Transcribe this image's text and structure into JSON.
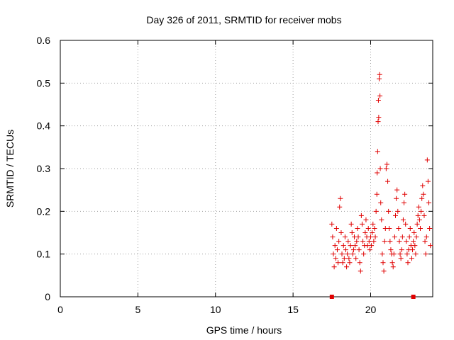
{
  "chart_data": {
    "type": "scatter",
    "title": "Day 326 of 2011, SRMTID for receiver mobs",
    "xlabel": "GPS time / hours",
    "ylabel": "SRMTID / TECUs",
    "xlim": [
      0,
      24
    ],
    "ylim": [
      0,
      0.6
    ],
    "x_ticks": [
      0,
      5,
      10,
      15,
      20
    ],
    "y_ticks": [
      0,
      0.1,
      0.2,
      0.3,
      0.4,
      0.5,
      0.6
    ],
    "x_tick_labels": [
      "0",
      "5",
      "10",
      "15",
      "20"
    ],
    "y_tick_labels": [
      "0",
      "0.1",
      "0.2",
      "0.3",
      "0.4",
      "0.5",
      "0.6"
    ],
    "grid": true,
    "marker": "plus",
    "color": "#e00000",
    "series": [
      {
        "name": "SRMTID",
        "points": [
          [
            17.5,
            0.17
          ],
          [
            17.55,
            0.14
          ],
          [
            17.6,
            0.1
          ],
          [
            17.65,
            0.07
          ],
          [
            17.7,
            0.12
          ],
          [
            17.75,
            0.09
          ],
          [
            17.8,
            0.16
          ],
          [
            17.85,
            0.11
          ],
          [
            17.9,
            0.08
          ],
          [
            17.95,
            0.13
          ],
          [
            18.0,
            0.21
          ],
          [
            18.05,
            0.23
          ],
          [
            18.1,
            0.15
          ],
          [
            18.15,
            0.1
          ],
          [
            18.2,
            0.08
          ],
          [
            18.25,
            0.12
          ],
          [
            18.3,
            0.09
          ],
          [
            18.35,
            0.14
          ],
          [
            18.4,
            0.11
          ],
          [
            18.45,
            0.07
          ],
          [
            18.5,
            0.1
          ],
          [
            18.55,
            0.13
          ],
          [
            18.6,
            0.09
          ],
          [
            18.65,
            0.08
          ],
          [
            18.7,
            0.12
          ],
          [
            18.75,
            0.17
          ],
          [
            18.8,
            0.15
          ],
          [
            18.85,
            0.1
          ],
          [
            18.9,
            0.11
          ],
          [
            18.95,
            0.14
          ],
          [
            19.0,
            0.12
          ],
          [
            19.05,
            0.09
          ],
          [
            19.1,
            0.13
          ],
          [
            19.15,
            0.16
          ],
          [
            19.2,
            0.14
          ],
          [
            19.25,
            0.11
          ],
          [
            19.3,
            0.08
          ],
          [
            19.35,
            0.06
          ],
          [
            19.4,
            0.19
          ],
          [
            19.45,
            0.17
          ],
          [
            19.5,
            0.13
          ],
          [
            19.55,
            0.1
          ],
          [
            19.6,
            0.12
          ],
          [
            19.65,
            0.15
          ],
          [
            19.7,
            0.18
          ],
          [
            19.75,
            0.14
          ],
          [
            19.8,
            0.12
          ],
          [
            19.85,
            0.16
          ],
          [
            19.9,
            0.13
          ],
          [
            19.95,
            0.11
          ],
          [
            20.0,
            0.14
          ],
          [
            20.05,
            0.12
          ],
          [
            20.1,
            0.15
          ],
          [
            20.15,
            0.17
          ],
          [
            20.2,
            0.13
          ],
          [
            20.25,
            0.16
          ],
          [
            20.3,
            0.14
          ],
          [
            20.35,
            0.2
          ],
          [
            20.4,
            0.24
          ],
          [
            20.42,
            0.29
          ],
          [
            20.45,
            0.34
          ],
          [
            20.48,
            0.41
          ],
          [
            20.5,
            0.46
          ],
          [
            20.52,
            0.42
          ],
          [
            20.55,
            0.51
          ],
          [
            20.58,
            0.52
          ],
          [
            20.6,
            0.47
          ],
          [
            20.62,
            0.3
          ],
          [
            20.65,
            0.22
          ],
          [
            20.7,
            0.18
          ],
          [
            20.75,
            0.1
          ],
          [
            20.8,
            0.08
          ],
          [
            20.85,
            0.06
          ],
          [
            20.9,
            0.13
          ],
          [
            20.95,
            0.16
          ],
          [
            21.0,
            0.3
          ],
          [
            21.05,
            0.31
          ],
          [
            21.1,
            0.27
          ],
          [
            21.15,
            0.2
          ],
          [
            21.2,
            0.16
          ],
          [
            21.25,
            0.13
          ],
          [
            21.3,
            0.11
          ],
          [
            21.35,
            0.1
          ],
          [
            21.4,
            0.08
          ],
          [
            21.45,
            0.07
          ],
          [
            21.5,
            0.1
          ],
          [
            21.55,
            0.14
          ],
          [
            21.6,
            0.19
          ],
          [
            21.65,
            0.23
          ],
          [
            21.7,
            0.25
          ],
          [
            21.75,
            0.2
          ],
          [
            21.8,
            0.16
          ],
          [
            21.85,
            0.13
          ],
          [
            21.9,
            0.1
          ],
          [
            21.95,
            0.09
          ],
          [
            22.0,
            0.11
          ],
          [
            22.05,
            0.14
          ],
          [
            22.1,
            0.18
          ],
          [
            22.15,
            0.22
          ],
          [
            22.2,
            0.24
          ],
          [
            22.25,
            0.17
          ],
          [
            22.3,
            0.13
          ],
          [
            22.35,
            0.1
          ],
          [
            22.4,
            0.08
          ],
          [
            22.45,
            0.11
          ],
          [
            22.5,
            0.14
          ],
          [
            22.55,
            0.16
          ],
          [
            22.6,
            0.12
          ],
          [
            22.65,
            0.09
          ],
          [
            22.7,
            0.11
          ],
          [
            22.75,
            0.13
          ],
          [
            22.8,
            0.15
          ],
          [
            22.85,
            0.12
          ],
          [
            22.9,
            0.1
          ],
          [
            22.95,
            0.14
          ],
          [
            23.0,
            0.17
          ],
          [
            23.05,
            0.19
          ],
          [
            23.1,
            0.21
          ],
          [
            23.15,
            0.18
          ],
          [
            23.2,
            0.16
          ],
          [
            23.25,
            0.2
          ],
          [
            23.3,
            0.23
          ],
          [
            23.35,
            0.26
          ],
          [
            23.4,
            0.24
          ],
          [
            23.45,
            0.19
          ],
          [
            23.5,
            0.13
          ],
          [
            23.55,
            0.1
          ],
          [
            23.6,
            0.14
          ],
          [
            23.65,
            0.32
          ],
          [
            23.7,
            0.27
          ],
          [
            23.75,
            0.22
          ],
          [
            23.8,
            0.16
          ],
          [
            23.85,
            0.12
          ]
        ]
      }
    ],
    "markers": [
      {
        "name": "gap-marker",
        "shape": "square",
        "x": 17.5,
        "y": 0
      },
      {
        "name": "gap-marker",
        "shape": "square",
        "x": 22.75,
        "y": 0
      }
    ]
  }
}
